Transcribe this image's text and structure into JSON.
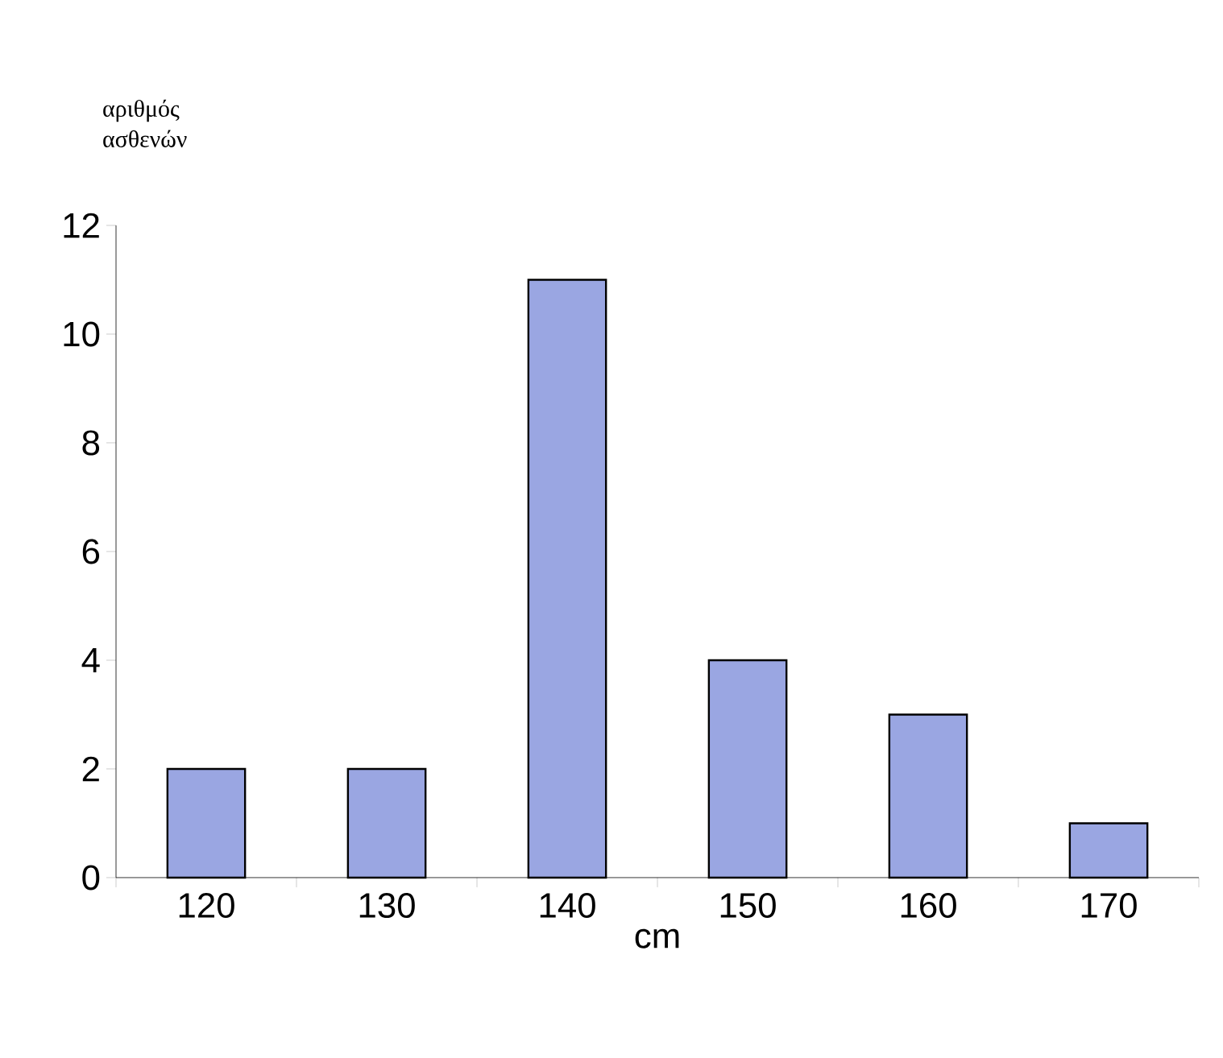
{
  "chart_data": {
    "type": "bar",
    "xlabel": "cm",
    "ylabel": "αριθμός ασθενών",
    "categories": [
      "120",
      "130",
      "140",
      "150",
      "160",
      "170"
    ],
    "values": [
      2,
      2,
      11,
      4,
      3,
      1
    ],
    "color": "#9aa6e2",
    "ylim": [
      0,
      12
    ],
    "yticks": [
      0,
      2,
      4,
      6,
      8,
      10,
      12
    ]
  }
}
